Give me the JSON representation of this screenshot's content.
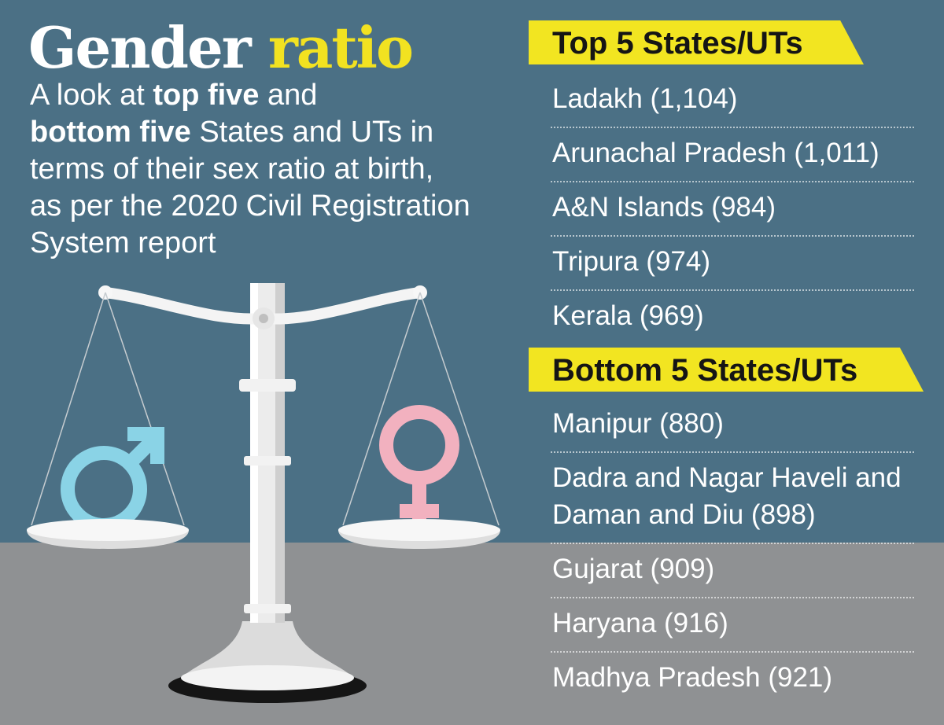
{
  "heading": {
    "title_main": "Gender",
    "title_accent": "ratio",
    "subtitle_1": "A look at ",
    "subtitle_2": "top five",
    "subtitle_3": " and ",
    "subtitle_4": "bottom five",
    "subtitle_5": " States and UTs in terms of their sex ratio at birth, as per the 2020 Civil Registration System report"
  },
  "top_section": {
    "label": "Top 5 States/UTs",
    "items": [
      "Ladakh (1,104)",
      "Arunachal Pradesh (1,011)",
      "A&N Islands (984)",
      "Tripura (974)",
      "Kerala (969)"
    ]
  },
  "bottom_section": {
    "label": "Bottom 5 States/UTs",
    "items": [
      "Manipur (880)",
      "Dadra and Nagar Haveli and Daman and Diu (898)",
      "Gujarat (909)",
      "Haryana (916)",
      "Madhya Pradesh (921)"
    ]
  },
  "illustration": {
    "icons": [
      "balance-scale-icon",
      "male-symbol-icon",
      "female-symbol-icon"
    ]
  },
  "colors": {
    "background_blue": "#4b7085",
    "background_grey": "#8f9193",
    "accent_yellow": "#f2e521",
    "male_blue": "#8ad3e6",
    "female_pink": "#f2b1bf"
  }
}
